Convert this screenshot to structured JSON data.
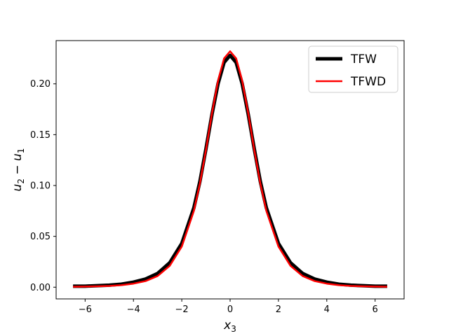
{
  "chart_data": {
    "type": "line",
    "title": "",
    "xlabel": "x_3",
    "ylabel": "u_2 - u_1",
    "xlim": [
      -7.2,
      7.2
    ],
    "ylim": [
      -0.0115,
      0.2425
    ],
    "xticks": [
      -6,
      -4,
      -2,
      0,
      2,
      4,
      6
    ],
    "xtick_labels": [
      "−6",
      "−4",
      "−2",
      "0",
      "2",
      "4",
      "6"
    ],
    "yticks": [
      0.0,
      0.05,
      0.1,
      0.15,
      0.2
    ],
    "ytick_labels": [
      "0.00",
      "0.05",
      "0.10",
      "0.15",
      "0.20"
    ],
    "grid": false,
    "legend": "top-right",
    "series": [
      {
        "name": "TFW",
        "color": "#000000",
        "x": [
          -6.5,
          -6.0,
          -5.5,
          -5.0,
          -4.5,
          -4.0,
          -3.5,
          -3.0,
          -2.5,
          -2.0,
          -1.5,
          -1.25,
          -1.0,
          -0.75,
          -0.5,
          -0.25,
          0.0,
          0.25,
          0.5,
          0.75,
          1.0,
          1.25,
          1.5,
          2.0,
          2.5,
          3.0,
          3.5,
          4.0,
          4.5,
          5.0,
          5.5,
          6.0,
          6.5
        ],
        "y": [
          0.001,
          0.001,
          0.0015,
          0.002,
          0.003,
          0.005,
          0.008,
          0.0135,
          0.024,
          0.043,
          0.078,
          0.104,
          0.136,
          0.17,
          0.2,
          0.221,
          0.228,
          0.221,
          0.2,
          0.17,
          0.136,
          0.104,
          0.078,
          0.043,
          0.024,
          0.0135,
          0.008,
          0.005,
          0.003,
          0.002,
          0.0015,
          0.001,
          0.001
        ]
      },
      {
        "name": "TFWD",
        "color": "#ff0000",
        "x": [
          -6.5,
          -6.0,
          -5.5,
          -5.0,
          -4.5,
          -4.0,
          -3.5,
          -3.0,
          -2.5,
          -2.0,
          -1.5,
          -1.25,
          -1.0,
          -0.75,
          -0.5,
          -0.25,
          0.0,
          0.25,
          0.5,
          0.75,
          1.0,
          1.25,
          1.5,
          2.0,
          2.5,
          3.0,
          3.5,
          4.0,
          4.5,
          5.0,
          5.5,
          6.0,
          6.5
        ],
        "y": [
          0.0005,
          0.0006,
          0.0009,
          0.0012,
          0.002,
          0.0035,
          0.006,
          0.011,
          0.021,
          0.04,
          0.075,
          0.102,
          0.135,
          0.171,
          0.203,
          0.225,
          0.232,
          0.225,
          0.203,
          0.171,
          0.135,
          0.102,
          0.075,
          0.04,
          0.021,
          0.011,
          0.006,
          0.0035,
          0.002,
          0.0012,
          0.0009,
          0.0006,
          0.0005
        ]
      }
    ]
  }
}
